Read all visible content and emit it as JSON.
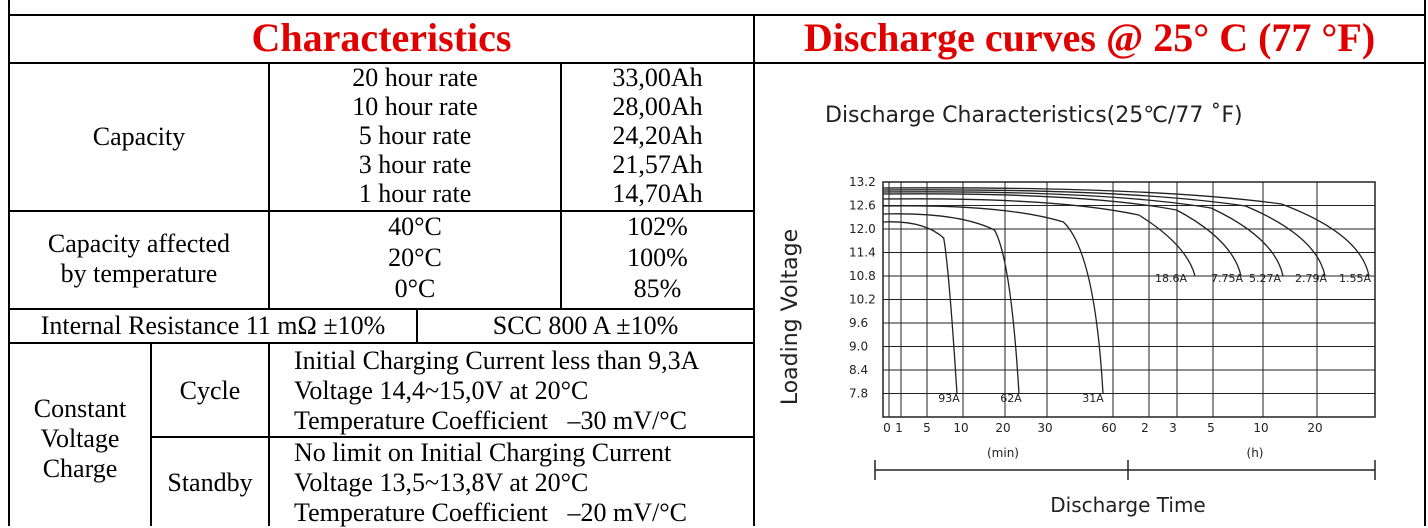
{
  "headers": {
    "characteristics": "Characteristics",
    "discharge": "Discharge curves @ 25° C (77 °F)"
  },
  "capacity": {
    "label": "Capacity",
    "rows": [
      {
        "rate": "20 hour rate",
        "value": "33,00Ah"
      },
      {
        "rate": "10 hour rate",
        "value": "28,00Ah"
      },
      {
        "rate": "5 hour rate",
        "value": "24,20Ah"
      },
      {
        "rate": "3 hour rate",
        "value": "21,57Ah"
      },
      {
        "rate": "1 hour rate",
        "value": "14,70Ah"
      }
    ]
  },
  "temperature": {
    "label_line1": "Capacity affected",
    "label_line2": "by temperature",
    "rows": [
      {
        "temp": "40°C",
        "value": "102%"
      },
      {
        "temp": "20°C",
        "value": "100%"
      },
      {
        "temp": "0°C",
        "value": "85%"
      }
    ]
  },
  "resistance": {
    "internal": "Internal Resistance 11 mΩ ±10%",
    "scc": "SCC 800 A ±10%"
  },
  "charge": {
    "label_line1": "Constant",
    "label_line2": "Voltage",
    "label_line3": "Charge",
    "cycle": {
      "label": "Cycle",
      "lines": [
        "Initial Charging Current less than 9,3A",
        "Voltage 14,4~15,0V at 20°C",
        "Temperature Coefficient   –30 mV/°C"
      ]
    },
    "standby": {
      "label": "Standby",
      "lines": [
        "No limit on Initial Charging Current",
        "Voltage 13,5~13,8V at 20°C",
        "Temperature Coefficient   –20 mV/°C"
      ]
    }
  },
  "chart_data": {
    "type": "line",
    "title": "Discharge Characteristics(25℃/77 ˚F)",
    "ylabel": "Loading Voltage",
    "xlabel": "Discharge Time",
    "y_ticks": [
      "13.2",
      "12.6",
      "12.0",
      "11.4",
      "10.8",
      "10.2",
      "9.6",
      "9.0",
      "8.4",
      "7.8"
    ],
    "x_ticks": [
      "0",
      "1",
      "5",
      "10",
      "20",
      "30",
      "60",
      "2",
      "3",
      "5",
      "10",
      "20"
    ],
    "x_units": {
      "min": "(min)",
      "h": "(h)"
    },
    "series": [
      {
        "name": "93A",
        "end_voltage": 9.0
      },
      {
        "name": "62A",
        "end_voltage": 9.0
      },
      {
        "name": "31A",
        "end_voltage": 9.0
      },
      {
        "name": "18.6A",
        "end_voltage": 10.2
      },
      {
        "name": "7.75A",
        "end_voltage": 10.2
      },
      {
        "name": "5.27A",
        "end_voltage": 10.2
      },
      {
        "name": "2.79A",
        "end_voltage": 10.2
      },
      {
        "name": "1.55A",
        "end_voltage": 10.2
      }
    ],
    "grid": true
  }
}
